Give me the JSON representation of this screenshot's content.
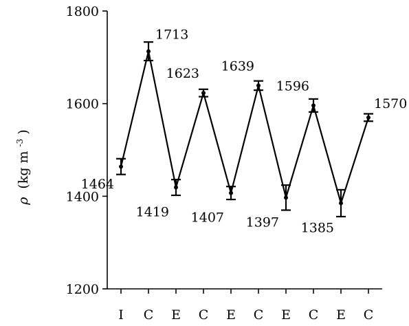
{
  "chart_data": {
    "type": "line",
    "categories": [
      "I",
      "C",
      "E",
      "C",
      "E",
      "C",
      "E",
      "C",
      "E",
      "C"
    ],
    "series": [
      {
        "values": [
          1464,
          1713,
          1419,
          1623,
          1407,
          1639,
          1397,
          1596,
          1385,
          1570
        ],
        "error": [
          17,
          20,
          17,
          8,
          14,
          10,
          27,
          14,
          29,
          8
        ]
      }
    ],
    "data_labels": [
      "1464",
      "1713",
      "1419",
      "1623",
      "1407",
      "1639",
      "1397",
      "1596",
      "1385",
      "1570"
    ],
    "label_side": [
      "below",
      "above",
      "below",
      "above",
      "below",
      "above",
      "below",
      "above",
      "below",
      "above"
    ],
    "ylabel_symbol": "ρ",
    "ylabel_units": "(kg m",
    "ylabel_exponent": "-3",
    "ylabel_close": ")",
    "xlabel": "",
    "title": "",
    "ylim": [
      1200,
      1800
    ],
    "yticks": [
      1200,
      1400,
      1600,
      1800
    ],
    "grid": false,
    "legend": "none",
    "color": "#000000"
  }
}
